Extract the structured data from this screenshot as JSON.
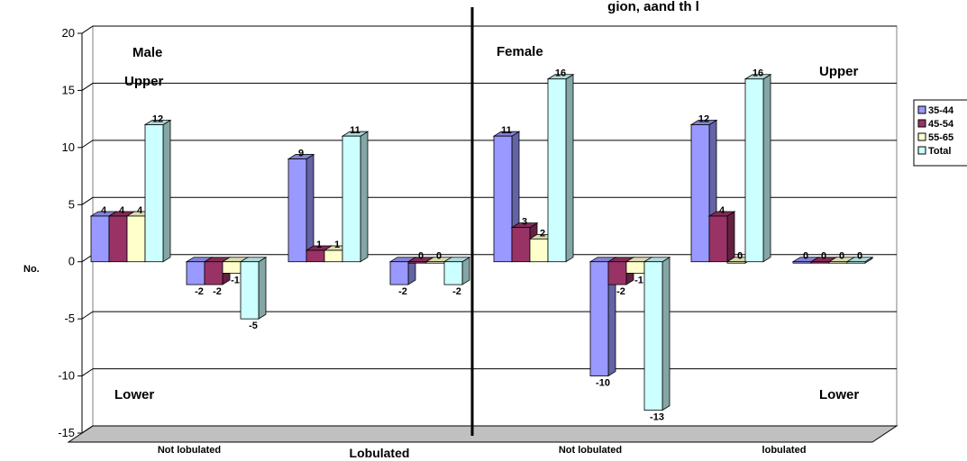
{
  "chart_data": {
    "type": "bar",
    "title": "",
    "partial_title": "gion, aand th l",
    "ylabel": "No.",
    "xlabel": "",
    "ylim": [
      -15,
      20
    ],
    "y_ticks": [
      -15,
      -10,
      -5,
      0,
      5,
      10,
      15,
      20
    ],
    "y_tick_labels": [
      "-15",
      "-10",
      "-5",
      "0",
      "5",
      "10",
      "15",
      "20"
    ],
    "grid": true,
    "legend_position": "right",
    "categories": [
      "Not lobulated (Male, Upper)",
      "Not lobulated (Male, Lower)",
      "Lobulated (Male, Upper)",
      "Lobulated (Male, Lower)",
      "Not lobulated (Female, Upper)",
      "Not lobulated (Female, Lower)",
      "lobulated (Female, Upper)",
      "lobulated (Female, Lower)"
    ],
    "x_group_labels": [
      "Not lobulated",
      "Lobulated",
      "Not lobulated",
      "lobulated"
    ],
    "series": [
      {
        "name": "35-44",
        "color": "#9999ff",
        "values": [
          4,
          -2,
          9,
          -2,
          11,
          -10,
          12,
          0
        ]
      },
      {
        "name": "45-54",
        "color": "#993366",
        "values": [
          4,
          -2,
          1,
          0,
          3,
          -2,
          4,
          0
        ]
      },
      {
        "name": "55-65",
        "color": "#ffffcc",
        "values": [
          4,
          -1,
          1,
          0,
          2,
          -1,
          0,
          0
        ]
      },
      {
        "name": "Total",
        "color": "#ccffff",
        "values": [
          12,
          -5,
          11,
          -2,
          16,
          -13,
          16,
          0
        ]
      }
    ],
    "annotations": [
      "Male",
      "Upper",
      "Lower",
      "Female",
      "Upper",
      "Lower"
    ]
  }
}
